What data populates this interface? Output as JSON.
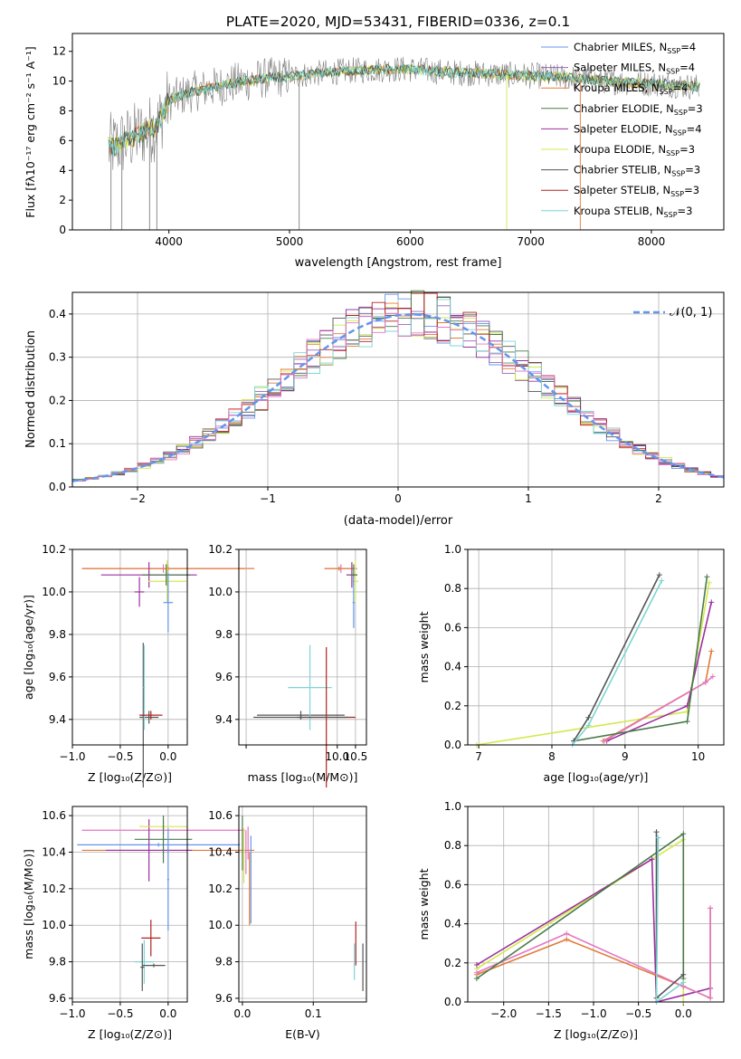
{
  "figure_title": "PLATE=2020, MJD=53431, FIBERID=0336, z=0.1",
  "colors": {
    "chabrier_miles": "#6495ed",
    "salpeter_miles": "#9467bd",
    "kroupa_miles": "#e07b39",
    "chabrier_elodie": "#4a7a4a",
    "salpeter_elodie": "#9b30a0",
    "kroupa_elodie": "#d4e84c",
    "chabrier_stelib": "#555555",
    "salpeter_stelib": "#b22222",
    "kroupa_stelib": "#7fd4d4",
    "pink": "#e377c2",
    "data": "#808080",
    "normal": "#6495ed"
  },
  "chart_data": [
    {
      "id": "spectrum",
      "type": "line",
      "xlabel": "wavelength [Angstrom, rest frame]",
      "ylabel": "Flux [fλ10⁻¹⁷ erg cm⁻² s⁻¹ A⁻¹]",
      "xlim": [
        3200,
        8600
      ],
      "ylim": [
        0,
        13.2
      ],
      "xticks": [
        4000,
        5000,
        6000,
        7000,
        8000
      ],
      "yticks": [
        0,
        2,
        4,
        6,
        8,
        10,
        12
      ],
      "grid": false,
      "legend_position": "upper-right",
      "legend": [
        {
          "label": "Chabrier MILES, N",
          "sub": "SSP",
          "suffix": "=4",
          "color": "#6495ed"
        },
        {
          "label": "Salpeter MILES, N",
          "sub": "SSP",
          "suffix": "=4",
          "color": "#9467bd"
        },
        {
          "label": "Kroupa MILES, N",
          "sub": "SSP",
          "suffix": "=4",
          "color": "#e07b39"
        },
        {
          "label": "Chabrier ELODIE, N",
          "sub": "SSP",
          "suffix": "=3",
          "color": "#4a7a4a"
        },
        {
          "label": "Salpeter ELODIE, N",
          "sub": "SSP",
          "suffix": "=4",
          "color": "#9b30a0"
        },
        {
          "label": "Kroupa ELODIE, N",
          "sub": "SSP",
          "suffix": "=3",
          "color": "#d4e84c"
        },
        {
          "label": "Chabrier STELIB, N",
          "sub": "SSP",
          "suffix": "=3",
          "color": "#555555"
        },
        {
          "label": "Salpeter STELIB, N",
          "sub": "SSP",
          "suffix": "=3",
          "color": "#b22222"
        },
        {
          "label": "Kroupa STELIB, N",
          "sub": "SSP",
          "suffix": "=3",
          "color": "#7fd4d4"
        }
      ],
      "continuum": {
        "x": [
          3500,
          3600,
          3700,
          3800,
          3900,
          4000,
          4200,
          4500,
          4800,
          5000,
          5200,
          5500,
          5800,
          6000,
          6300,
          6600,
          6900,
          7200,
          7500,
          7800,
          8100,
          8400
        ],
        "y": [
          5.5,
          5.8,
          6.2,
          6.6,
          7.0,
          8.7,
          9.3,
          9.8,
          10.2,
          10.3,
          10.5,
          10.7,
          10.8,
          10.8,
          10.6,
          10.5,
          10.4,
          10.3,
          10.1,
          9.9,
          9.8,
          9.6
        ]
      }
    },
    {
      "id": "residuals",
      "type": "bar",
      "xlabel": "(data-model)/error",
      "ylabel": "Normed distribution",
      "xlim": [
        -2.5,
        2.5
      ],
      "ylim": [
        0,
        0.45
      ],
      "xticks": [
        -2,
        -1,
        0,
        1,
        2
      ],
      "xticklabels": [
        "−2",
        "−1",
        "0",
        "1",
        "2"
      ],
      "yticks": [
        0.0,
        0.1,
        0.2,
        0.3,
        0.4
      ],
      "grid": true,
      "legend_position": "upper-right",
      "legend_label": "𝒩(0, 1)",
      "bin_width": 0.1
    },
    {
      "id": "age_vs_Z",
      "type": "scatter",
      "xlabel": "Z [log₁₀(Z/Z⊙)]",
      "ylabel": "age  [log₁₀(age/yr)]",
      "xlim": [
        -1.0,
        0.2
      ],
      "ylim": [
        9.28,
        10.2
      ],
      "xticks": [
        -1.0,
        -0.5,
        0.0
      ],
      "xticklabels": [
        "−1.0",
        "−0.5",
        "0.0"
      ],
      "yticks": [
        9.4,
        9.6,
        9.8,
        10.0,
        10.2
      ],
      "grid": true
    },
    {
      "id": "age_vs_mass",
      "type": "scatter",
      "xlabel": "mass [log₁₀(M/M⊙)]",
      "xlim": [
        7.3,
        10.8
      ],
      "ylim": [
        9.28,
        10.2
      ],
      "xticks": [
        7.5,
        10.0,
        10.5
      ],
      "xticklabels": [
        "",
        "10.0",
        "10.5"
      ],
      "yticks": [
        9.4,
        9.6,
        9.8,
        10.0,
        10.2
      ],
      "grid": true
    },
    {
      "id": "weight_vs_age",
      "type": "line",
      "xlabel": "age  [log₁₀(age/yr)]",
      "ylabel": "mass weight",
      "xlim": [
        6.85,
        10.35
      ],
      "ylim": [
        0,
        1.0
      ],
      "xticks": [
        7,
        8,
        9,
        10
      ],
      "yticks": [
        0.0,
        0.2,
        0.4,
        0.6,
        0.8,
        1.0
      ],
      "grid": true
    },
    {
      "id": "mass_vs_Z",
      "type": "scatter",
      "xlabel": "Z [log₁₀(Z/Z⊙)]",
      "ylabel": "mass [log₁₀(M/M⊙)]",
      "xlim": [
        -1.0,
        0.2
      ],
      "ylim": [
        9.58,
        10.65
      ],
      "xticks": [
        -1.0,
        -0.5,
        0.0
      ],
      "xticklabels": [
        "−1.0",
        "−0.5",
        "0.0"
      ],
      "yticks": [
        9.6,
        9.8,
        10.0,
        10.2,
        10.4,
        10.6
      ],
      "grid": true
    },
    {
      "id": "mass_vs_EBV",
      "type": "scatter",
      "xlabel": "E(B-V)",
      "xlim": [
        -0.005,
        0.175
      ],
      "ylim": [
        9.58,
        10.65
      ],
      "xticks": [
        0.0,
        0.1
      ],
      "xticklabels": [
        "0.0",
        "0.1"
      ],
      "yticks": [
        9.6,
        9.8,
        10.0,
        10.2,
        10.4,
        10.6
      ],
      "grid": true
    },
    {
      "id": "weight_vs_Z",
      "type": "line",
      "xlabel": "Z [log₁₀(Z/Z⊙)]",
      "ylabel": "mass weight",
      "xlim": [
        -2.4,
        0.45
      ],
      "ylim": [
        0,
        1.0
      ],
      "xticks": [
        -2.0,
        -1.5,
        -1.0,
        -0.5,
        0.0
      ],
      "xticklabels": [
        "−2.0",
        "−1.5",
        "−1.0",
        "−0.5",
        "0.0"
      ],
      "yticks": [
        0.0,
        0.2,
        0.4,
        0.6,
        0.8,
        1.0
      ],
      "grid": true
    }
  ]
}
